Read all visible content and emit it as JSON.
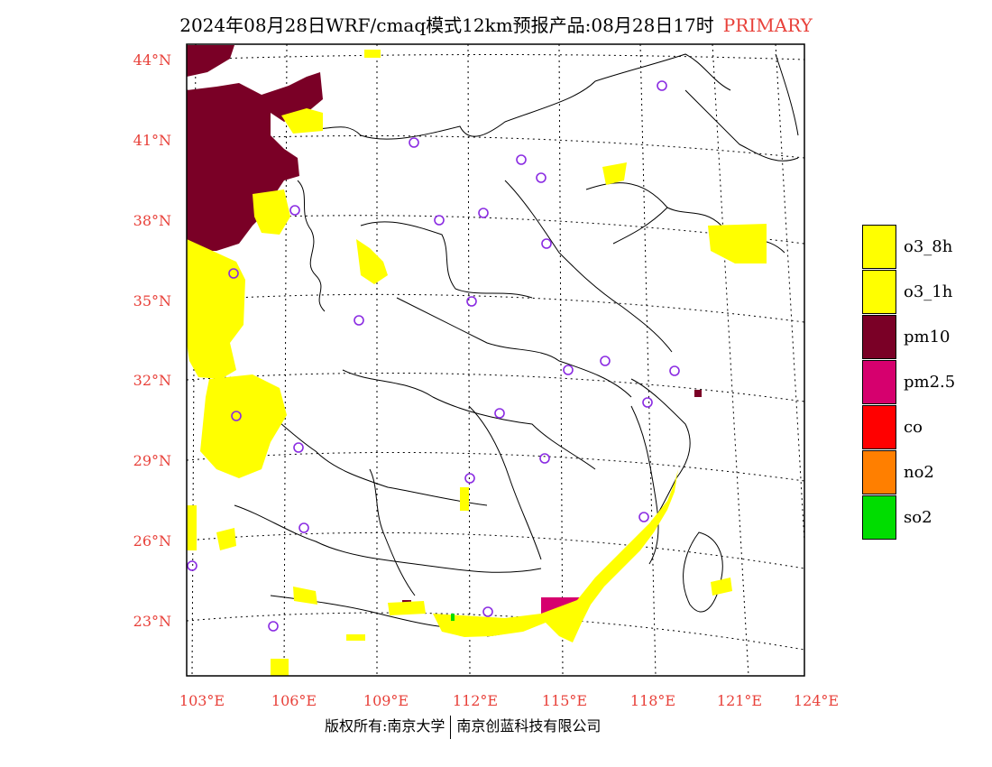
{
  "header": {
    "title": "2024年08月28日WRF/cmaq模式12km预报产品:08月28日17时",
    "tag": "PRIMARY"
  },
  "map": {
    "lat_labels": [
      "44°N",
      "41°N",
      "38°N",
      "35°N",
      "32°N",
      "29°N",
      "26°N",
      "23°N"
    ],
    "lon_labels": [
      "103°E",
      "106°E",
      "109°E",
      "112°E",
      "115°E",
      "118°E",
      "121°E",
      "124°E"
    ]
  },
  "legend": {
    "items": [
      {
        "label": "o3_8h",
        "color": "#ffff00"
      },
      {
        "label": "o3_1h",
        "color": "#ffff00"
      },
      {
        "label": "pm10",
        "color": "#7a0026"
      },
      {
        "label": "pm2.5",
        "color": "#d6006e"
      },
      {
        "label": "co",
        "color": "#ff0000"
      },
      {
        "label": "no2",
        "color": "#ff7f00"
      },
      {
        "label": "so2",
        "color": "#00dd00"
      }
    ]
  },
  "footer": {
    "left": "版权所有:南京大学",
    "right": "南京创蓝科技有限公司"
  }
}
